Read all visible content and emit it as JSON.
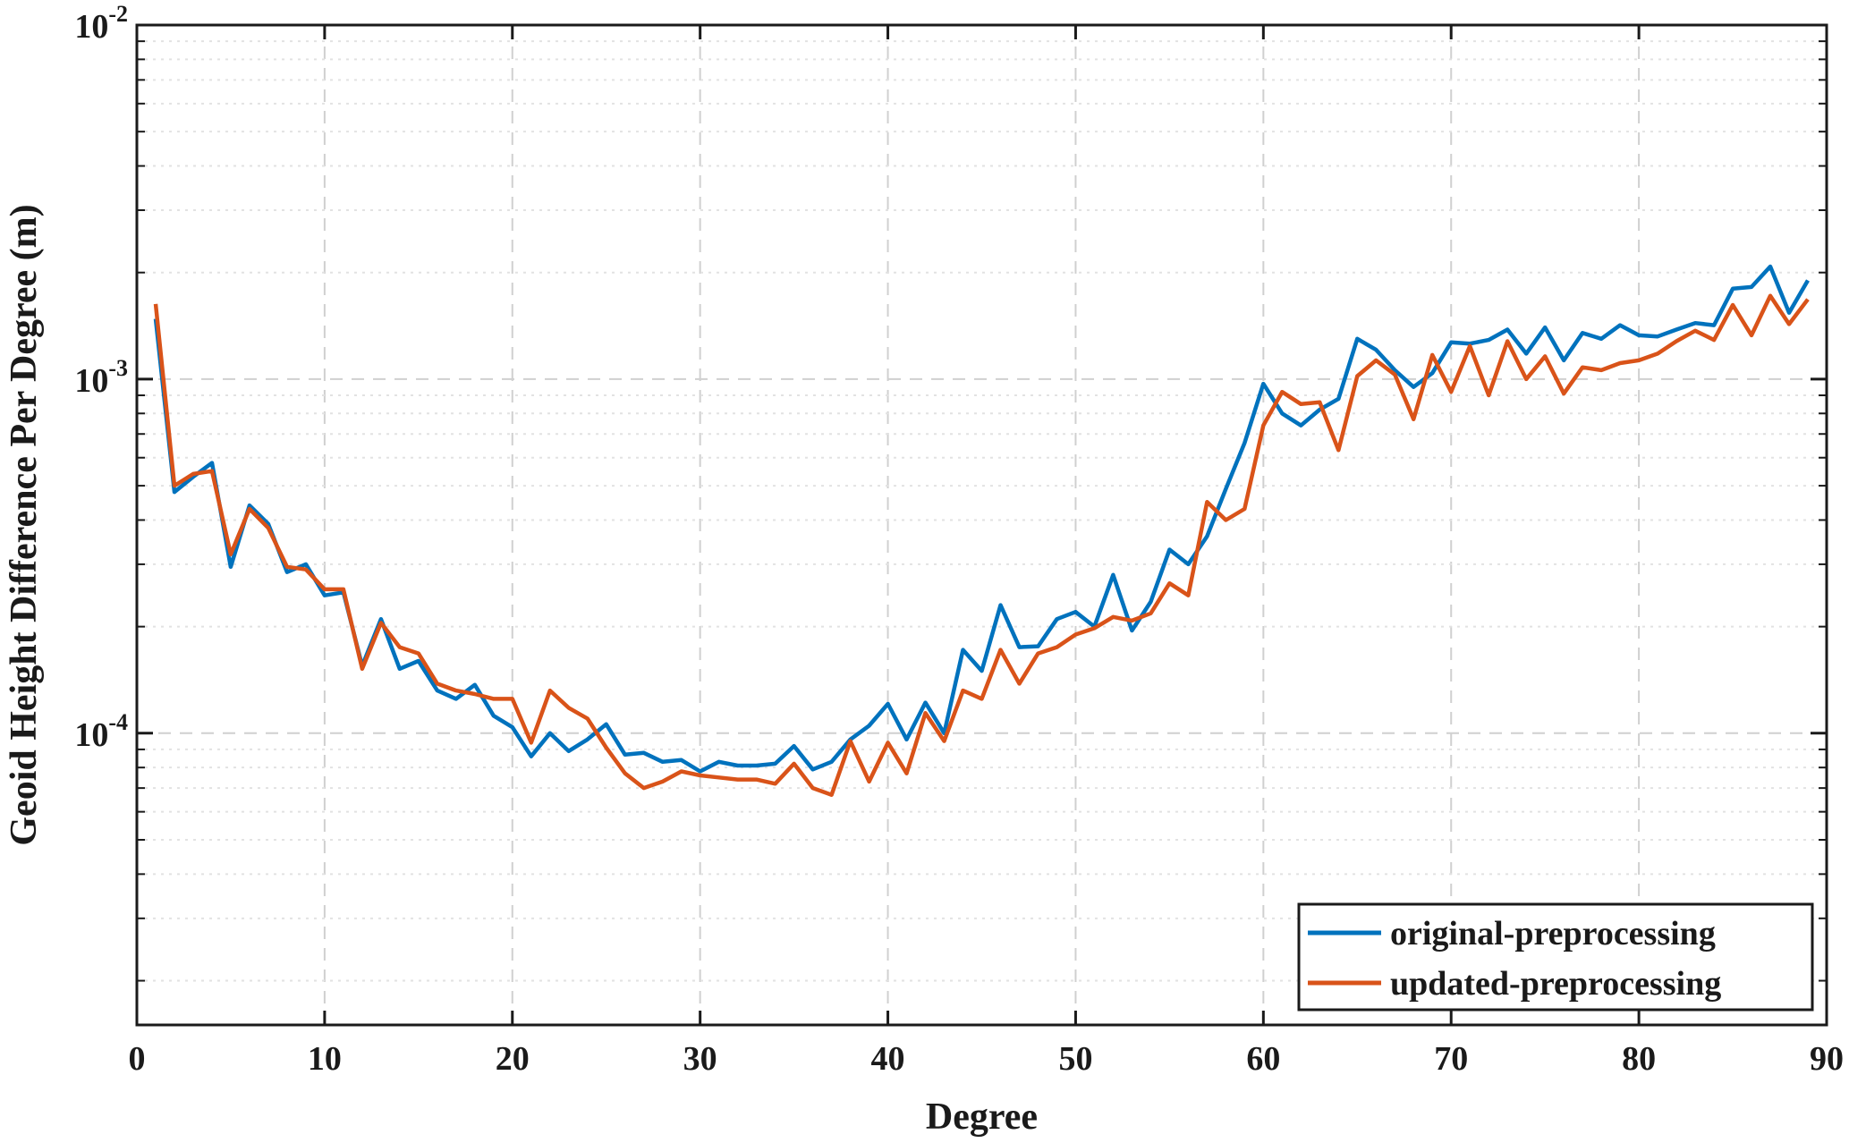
{
  "chart_data": {
    "type": "line",
    "xlabel": "Degree",
    "ylabel": "Geoid Height Difference Per Degree (m)",
    "xlim": [
      0,
      90
    ],
    "ylim": [
      1.5e-05,
      0.01
    ],
    "yscale": "log",
    "grid": true,
    "legend_position": "bottom-right",
    "x_ticks": [
      0,
      10,
      20,
      30,
      40,
      50,
      60,
      70,
      80,
      90
    ],
    "y_ticks": [
      {
        "value": 0.0001,
        "base": "10",
        "exp": "-4"
      },
      {
        "value": 0.001,
        "base": "10",
        "exp": "-3"
      },
      {
        "value": 0.01,
        "base": "10",
        "exp": "-2"
      }
    ],
    "x": [
      1,
      2,
      3,
      4,
      5,
      6,
      7,
      8,
      9,
      10,
      11,
      12,
      13,
      14,
      15,
      16,
      17,
      18,
      19,
      20,
      21,
      22,
      23,
      24,
      25,
      26,
      27,
      28,
      29,
      30,
      31,
      32,
      33,
      34,
      35,
      36,
      37,
      38,
      39,
      40,
      41,
      42,
      43,
      44,
      45,
      46,
      47,
      48,
      49,
      50,
      51,
      52,
      53,
      54,
      55,
      56,
      57,
      58,
      59,
      60,
      61,
      62,
      63,
      64,
      65,
      66,
      67,
      68,
      69,
      70,
      71,
      72,
      73,
      74,
      75,
      76,
      77,
      78,
      79,
      80,
      81,
      82,
      83,
      84,
      85,
      86,
      87,
      88,
      89
    ],
    "series": [
      {
        "name": "original-preprocessing",
        "color": "#0072BD",
        "values": [
          0.00148,
          0.00048,
          0.00053,
          0.00058,
          0.000295,
          0.00044,
          0.00039,
          0.000285,
          0.0003,
          0.000245,
          0.00025,
          0.000155,
          0.00021,
          0.000152,
          0.00016,
          0.000132,
          0.000125,
          0.000137,
          0.000112,
          0.000104,
          8.6e-05,
          0.0001,
          8.9e-05,
          9.6e-05,
          0.000106,
          8.7e-05,
          8.8e-05,
          8.3e-05,
          8.4e-05,
          7.8e-05,
          8.3e-05,
          8.1e-05,
          8.1e-05,
          8.2e-05,
          9.2e-05,
          7.9e-05,
          8.3e-05,
          9.6e-05,
          0.000105,
          0.000121,
          9.6e-05,
          0.000122,
          0.0001,
          0.000172,
          0.00015,
          0.00023,
          0.000175,
          0.000176,
          0.00021,
          0.00022,
          0.0002,
          0.00028,
          0.000195,
          0.000235,
          0.00033,
          0.0003,
          0.00036,
          0.00049,
          0.00066,
          0.00097,
          0.0008,
          0.00074,
          0.00082,
          0.00088,
          0.0013,
          0.00121,
          0.00106,
          0.00095,
          0.00104,
          0.00127,
          0.00126,
          0.00129,
          0.00138,
          0.00118,
          0.0014,
          0.00113,
          0.00135,
          0.0013,
          0.00142,
          0.00133,
          0.00132,
          0.00138,
          0.00144,
          0.00142,
          0.0018,
          0.00182,
          0.00208,
          0.00154,
          0.0019
        ]
      },
      {
        "name": "updated-preprocessing",
        "color": "#D95319",
        "values": [
          0.00163,
          0.0005,
          0.00054,
          0.00055,
          0.00032,
          0.00043,
          0.00038,
          0.000295,
          0.00029,
          0.000255,
          0.000255,
          0.000152,
          0.000205,
          0.000175,
          0.000168,
          0.000138,
          0.000132,
          0.000129,
          0.000125,
          0.000125,
          9.4e-05,
          0.000132,
          0.000118,
          0.00011,
          9.1e-05,
          7.7e-05,
          7e-05,
          7.3e-05,
          7.8e-05,
          7.6e-05,
          7.5e-05,
          7.4e-05,
          7.4e-05,
          7.2e-05,
          8.2e-05,
          7e-05,
          6.7e-05,
          9.5e-05,
          7.3e-05,
          9.4e-05,
          7.7e-05,
          0.000114,
          9.5e-05,
          0.000132,
          0.000125,
          0.000172,
          0.000138,
          0.000168,
          0.000175,
          0.00019,
          0.000198,
          0.000213,
          0.000208,
          0.000218,
          0.000265,
          0.000245,
          0.00045,
          0.0004,
          0.00043,
          0.00074,
          0.00092,
          0.00085,
          0.00086,
          0.00063,
          0.00102,
          0.00113,
          0.00103,
          0.00077,
          0.00117,
          0.00092,
          0.00124,
          0.0009,
          0.00128,
          0.001,
          0.00116,
          0.00091,
          0.00108,
          0.00106,
          0.00111,
          0.00113,
          0.00118,
          0.00128,
          0.00137,
          0.00129,
          0.00162,
          0.00133,
          0.00172,
          0.00143,
          0.00168
        ]
      }
    ]
  }
}
